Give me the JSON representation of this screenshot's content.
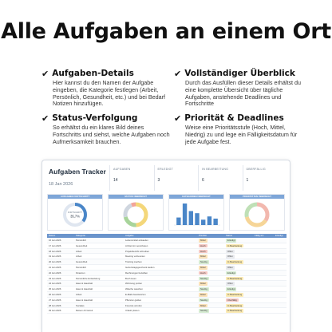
{
  "headline": "Alle Aufgaben an einem Ort",
  "features": [
    {
      "title": "Aufgaben-Details",
      "desc": "Hier kannst du den Namen der Aufgabe eingeben, die Kategorie festlegen (Arbeit, Persönlich, Gesundheit, etc.) und bei Bedarf Notizen hinzufügen."
    },
    {
      "title": "Vollständiger Überblick",
      "desc": "Durch das Ausfüllen dieser Details erhältst du eine komplette Übersicht über tägliche Aufgaben, anstehende Deadlines und Fortschritte"
    },
    {
      "title": "Status-Verfolgung",
      "desc": "So erhältst du ein klares Bild deines Fortschritts und siehst, welche Aufgaben noch Aufmerksamkeit brauchen."
    },
    {
      "title": "Priorität & Deadlines",
      "desc": "Weise eine Prioritätsstufe (Hoch, Mittel, Niedrig) zu und lege ein Fälligkeitsdatum für jede Aufgabe fest."
    }
  ],
  "sheet": {
    "title": "Aufgaben Tracker",
    "date": "18 Jan 2026",
    "kpis": [
      {
        "label": "AUFGABEN",
        "value": "14"
      },
      {
        "label": "ERLEDIGT",
        "value": "3"
      },
      {
        "label": "IN BEARBEITUNG",
        "value": "6"
      },
      {
        "label": "ÜBERFÄLLIG",
        "value": "1"
      }
    ],
    "charts": [
      {
        "title": "AUFGABEN FORTSCHRITT",
        "center_label": "FORTSCHRITT",
        "center_value": "35,7%",
        "progress": 0.357
      },
      {
        "title": "STATUS ÜBERSICHT"
      },
      {
        "title": "KATEGORIEN ÜBERSICHT",
        "bars": [
          0.35,
          1.0,
          0.65,
          0.55,
          0.25,
          0.4,
          0.3
        ]
      },
      {
        "title": "PRIORITÄTEN ÜBERSICHT"
      }
    ],
    "table_headers": [
      "Datum",
      "Kategorie",
      "Aufgabe",
      "Priorität",
      "Status",
      "Fällig am",
      "Erledigt"
    ],
    "rows": [
      [
        "16 Jan 2026",
        "Persönlich",
        "Lebensmittel einkaufen",
        "Mittel",
        "Erledigt",
        "",
        ""
      ],
      [
        "17 Jan 2026",
        "Gesundheit",
        "Arzttermin vereinbaren",
        "Hoch",
        "In Bearbeitung",
        "",
        ""
      ],
      [
        "18 Jan 2026",
        "Arbeit",
        "Projektbericht schreiben",
        "Hoch",
        "Offen",
        "",
        ""
      ],
      [
        "19 Jan 2026",
        "Arbeit",
        "Meeting vorbereiten",
        "Mittel",
        "Offen",
        "",
        ""
      ],
      [
        "20 Jan 2026",
        "Gesundheit",
        "Training machen",
        "Niedrig",
        "In Bearbeitung",
        "",
        ""
      ],
      [
        "21 Jan 2026",
        "Persönlich",
        "Geburtstagsgeschenk kaufen",
        "Mittel",
        "Offen",
        "",
        ""
      ],
      [
        "22 Jan 2026",
        "Finanzen",
        "Rechnungen bezahlen",
        "Hoch",
        "Erledigt",
        "",
        ""
      ],
      [
        "23 Jan 2026",
        "Persönliche Entwicklung",
        "Buch lesen",
        "Niedrig",
        "In Bearbeitung",
        "",
        ""
      ],
      [
        "24 Jan 2026",
        "Haus & Haushalt",
        "Wohnung putzen",
        "Mittel",
        "Offen",
        "",
        ""
      ],
      [
        "25 Jan 2026",
        "Haus & Haushalt",
        "Wäsche waschen",
        "Niedrig",
        "Erledigt",
        "",
        ""
      ],
      [
        "26 Jan 2026",
        "Arbeit",
        "E-Mails beantworten",
        "Mittel",
        "In Bearbeitung",
        "",
        ""
      ],
      [
        "27 Jan 2026",
        "Haus & Haushalt",
        "Pflanzen gießen",
        "Niedrig",
        "Überfällig",
        "",
        ""
      ],
      [
        "28 Jan 2026",
        "Soziales",
        "Freunde anrufen",
        "Mittel",
        "In Bearbeitung",
        "",
        ""
      ],
      [
        "29 Jan 2026",
        "Reisen & Freizeit",
        "Urlaub planen",
        "Niedrig",
        "In Bearbeitung",
        "",
        ""
      ]
    ]
  },
  "colors": {
    "accent": "#7ea6d8",
    "header_blue": "#6a94cc",
    "prio_hoch": "#f6c9c4",
    "prio_mittel": "#fbe2b8",
    "prio_niedrig": "#d6ecd2",
    "status_erledigt": "#d6ecd2",
    "status_bearbeitung": "#fbeab2",
    "status_offen": "#e8eaee",
    "status_ueberfaellig": "#f6c9c4"
  }
}
